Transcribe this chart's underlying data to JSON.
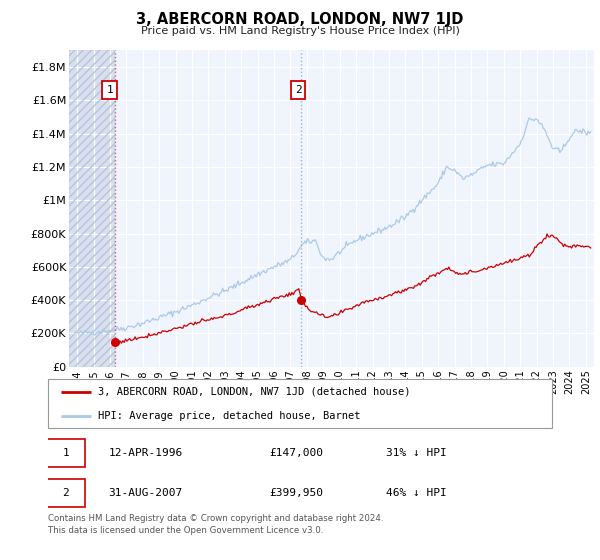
{
  "title": "3, ABERCORN ROAD, LONDON, NW7 1JD",
  "subtitle": "Price paid vs. HM Land Registry's House Price Index (HPI)",
  "xlim": [
    1993.5,
    2025.5
  ],
  "ylim": [
    0,
    1900000
  ],
  "yticks": [
    0,
    200000,
    400000,
    600000,
    800000,
    1000000,
    1200000,
    1400000,
    1600000,
    1800000
  ],
  "ytick_labels": [
    "£0",
    "£200K",
    "£400K",
    "£600K",
    "£800K",
    "£1M",
    "£1.2M",
    "£1.4M",
    "£1.6M",
    "£1.8M"
  ],
  "xticks": [
    1994,
    1995,
    1996,
    1997,
    1998,
    1999,
    2000,
    2001,
    2002,
    2003,
    2004,
    2005,
    2006,
    2007,
    2008,
    2009,
    2010,
    2011,
    2012,
    2013,
    2014,
    2015,
    2016,
    2017,
    2018,
    2019,
    2020,
    2021,
    2022,
    2023,
    2024,
    2025
  ],
  "hpi_color": "#a8c8e8",
  "price_color": "#cc0000",
  "sale1_x": 1996.28,
  "sale1_y": 147000,
  "sale2_x": 2007.66,
  "sale2_y": 399950,
  "annotation1_label": "1",
  "annotation2_label": "2",
  "legend_line1": "3, ABERCORN ROAD, LONDON, NW7 1JD (detached house)",
  "legend_line2": "HPI: Average price, detached house, Barnet",
  "table_row1_num": "1",
  "table_row1_date": "12-APR-1996",
  "table_row1_price": "£147,000",
  "table_row1_hpi": "31% ↓ HPI",
  "table_row2_num": "2",
  "table_row2_date": "31-AUG-2007",
  "table_row2_price": "£399,950",
  "table_row2_hpi": "46% ↓ HPI",
  "footnote1": "Contains HM Land Registry data © Crown copyright and database right 2024.",
  "footnote2": "This data is licensed under the Open Government Licence v3.0.",
  "chart_bg": "#f0f4fc"
}
